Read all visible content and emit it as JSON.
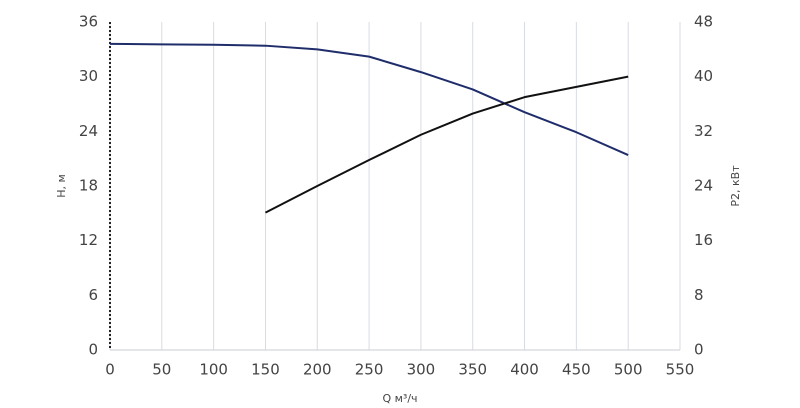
{
  "chart_data": {
    "type": "line",
    "x_label": "Q м³/ч",
    "y_label": "H, м",
    "y2_label": "P2, кВт",
    "x": [
      0,
      50,
      100,
      150,
      200,
      250,
      300,
      350,
      400,
      450,
      500
    ],
    "series": [
      {
        "name": "H",
        "color": "#1f2d6b",
        "values": [
          33.6,
          33.55,
          33.5,
          33.4,
          33.0,
          32.2,
          30.5,
          28.6,
          26.1,
          23.9,
          21.4
        ]
      },
      {
        "name": "P2",
        "color": "#111111",
        "axis": "y2",
        "values": [
          null,
          null,
          null,
          20.1,
          24.0,
          27.8,
          31.5,
          34.6,
          37.0,
          38.5,
          40.0
        ]
      }
    ],
    "xlim": [
      0,
      550
    ],
    "xticks": [
      0,
      50,
      100,
      150,
      200,
      250,
      300,
      350,
      400,
      450,
      500,
      550
    ],
    "ylim": [
      0,
      36
    ],
    "yticks": [
      0,
      6,
      12,
      18,
      24,
      30,
      36
    ],
    "y2lim": [
      0,
      48
    ],
    "y2ticks": [
      0,
      8,
      16,
      24,
      32,
      40,
      48
    ],
    "grid": "x"
  }
}
